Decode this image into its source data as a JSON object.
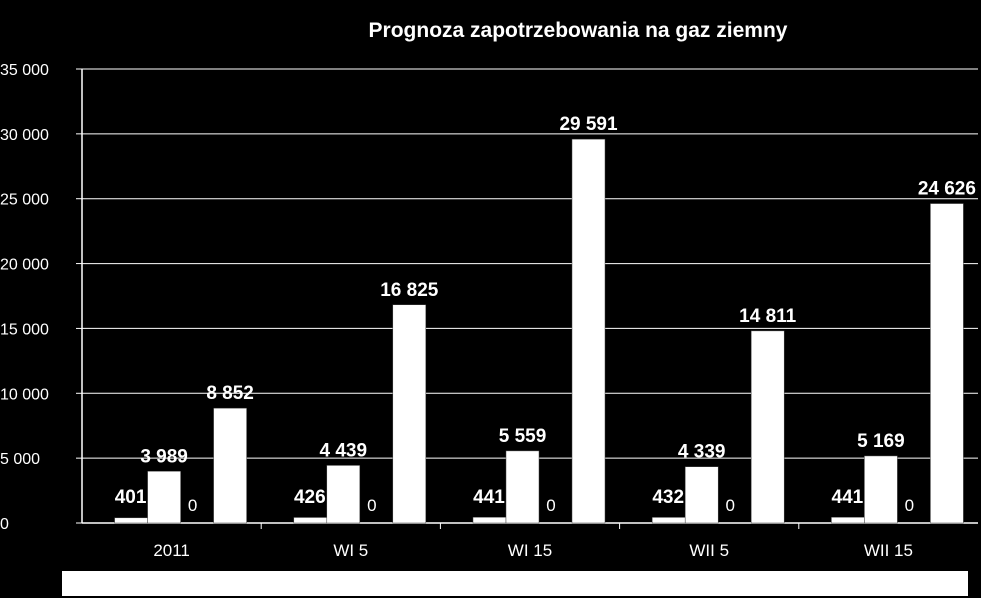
{
  "chart_data": {
    "type": "bar",
    "title": "Prognoza zapotrzebowania na gaz ziemny",
    "categories": [
      "2011",
      "WI 5",
      "WI 15",
      "WII 5",
      "WII 15"
    ],
    "series": [
      {
        "values": [
          401,
          426,
          441,
          432,
          441
        ]
      },
      {
        "values": [
          3989,
          4439,
          5559,
          4339,
          5169
        ]
      },
      {
        "values": [
          0,
          0,
          0,
          0,
          0
        ]
      },
      {
        "values": [
          8852,
          16825,
          29591,
          14811,
          24626
        ]
      }
    ],
    "data_labels": [
      [
        "401",
        "426",
        "441",
        "432",
        "441"
      ],
      [
        "3 989",
        "4 439",
        "5 559",
        "4 339",
        "5 169"
      ],
      [
        "0",
        "0",
        "0",
        "0",
        "0"
      ],
      [
        "8 852",
        "16 825",
        "29 591",
        "14 811",
        "24 626"
      ]
    ],
    "y_ticks": [
      "0",
      "5 000",
      "10 000",
      "15 000",
      "20 000",
      "25 000",
      "30 000",
      "35 000"
    ],
    "ylim": [
      0,
      35000
    ],
    "grid": true,
    "bar_color": "#ffffff",
    "background": "#000000"
  }
}
